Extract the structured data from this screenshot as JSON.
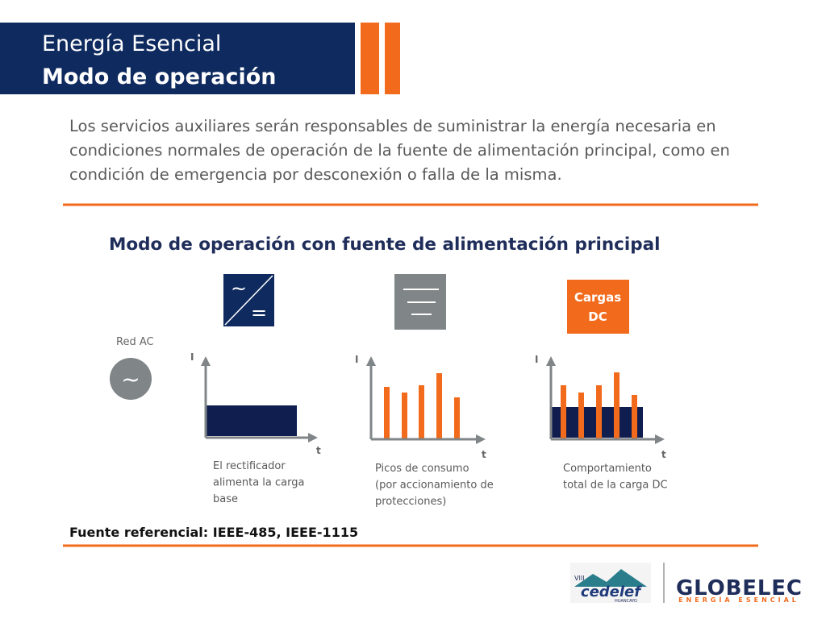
{
  "header": {
    "title": "Energía Esencial",
    "subtitle": "Modo de operación"
  },
  "intro": "Los servicios auxiliares serán responsables de suministrar la energía necesaria en condiciones normales de operación de la fuente de alimentación principal, como en condición de emergencia por desconexión o falla de la misma.",
  "section_title": "Modo de operación con fuente de alimentación principal",
  "source": {
    "red_label": "Red AC",
    "symbol": "~"
  },
  "icons": {
    "rectifier_ac": "~",
    "rectifier_dc": "=",
    "load": [
      "Cargas",
      "DC"
    ]
  },
  "panels": [
    {
      "y_label": "I",
      "x_label": "t",
      "caption": [
        "El rectificador",
        "alimenta la carga",
        "base"
      ]
    },
    {
      "y_label": "I",
      "x_label": "t",
      "caption": [
        "Picos de consumo",
        "(por accionamiento de",
        "protecciones)"
      ]
    },
    {
      "y_label": "I",
      "x_label": "t",
      "caption": [
        "Comportamiento",
        "total de la carga DC"
      ]
    }
  ],
  "reference": "Fuente referencial: IEEE-485, IEEE-1115",
  "logos": {
    "cedelef_edition": "VIII",
    "cedelef": "cedelef",
    "cedelef_city": "HUANCAYO",
    "globelec": "GLOBELEC",
    "globelec_tagline": "ENERGÍA ESENCIAL"
  }
}
